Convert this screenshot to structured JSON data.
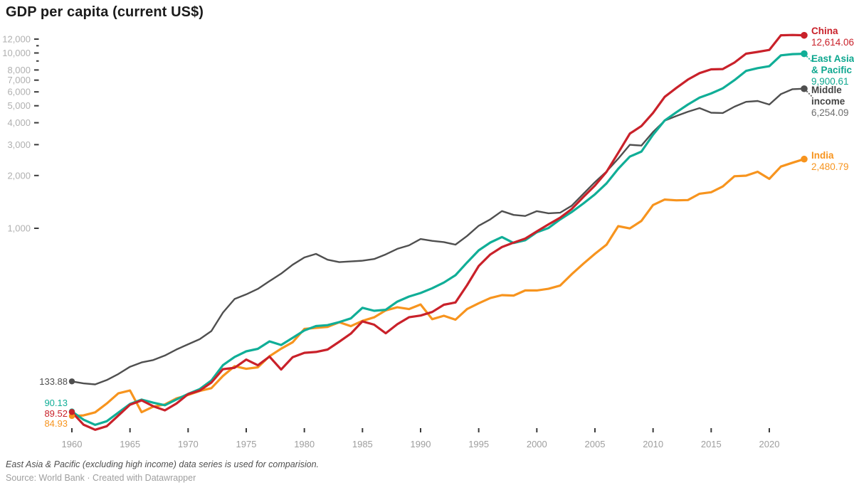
{
  "page": {
    "title": "GDP per capita (current US$)"
  },
  "chart_data": {
    "type": "line",
    "title": "GDP per capita (current US$)",
    "y_scale": "log",
    "grid": "ticks-only",
    "legend_position": "right-edge-labels",
    "x_start_year": 1960,
    "x_end_year": 2023,
    "ylim": [
      65,
      13000
    ],
    "x_ticks": [
      {
        "year": 1960,
        "label": "1960"
      },
      {
        "year": 1965,
        "label": "1965"
      },
      {
        "year": 1970,
        "label": "1970"
      },
      {
        "year": 1975,
        "label": "1975"
      },
      {
        "year": 1980,
        "label": "1980"
      },
      {
        "year": 1985,
        "label": "1985"
      },
      {
        "year": 1990,
        "label": "1990"
      },
      {
        "year": 1995,
        "label": "1995"
      },
      {
        "year": 2000,
        "label": "2000"
      },
      {
        "year": 2005,
        "label": "2005"
      },
      {
        "year": 2010,
        "label": "2010"
      },
      {
        "year": 2015,
        "label": "2015"
      },
      {
        "year": 2020,
        "label": "2020"
      }
    ],
    "y_ticks": [
      {
        "value": 1000,
        "label": "1,000"
      },
      {
        "value": 2000,
        "label": "2,000"
      },
      {
        "value": 3000,
        "label": "3,000"
      },
      {
        "value": 4000,
        "label": "4,000"
      },
      {
        "value": 5000,
        "label": "5,000"
      },
      {
        "value": 6000,
        "label": "6,000"
      },
      {
        "value": 7000,
        "label": "7,000"
      },
      {
        "value": 8000,
        "label": "8,000"
      },
      {
        "value": 10000,
        "label": "10,000"
      },
      {
        "value": 12000,
        "label": "12,000"
      }
    ],
    "y_minor_ticks": [
      9000,
      11000
    ],
    "series": [
      {
        "id": "middle-income",
        "name": "Middle income",
        "name_lines": [
          "Middle",
          "income"
        ],
        "color": "#4f4f4f",
        "name_color": "#454545",
        "value_color": "#6e6e6e",
        "start_value": 133.88,
        "start_label": "133.88",
        "end_value": 6254.09,
        "end_label": "6,254.09",
        "values": [
          133.88,
          130.4,
          128.7,
          136.2,
          147.5,
          162.3,
          171.8,
          177.2,
          188.0,
          203.6,
          217.9,
          233.2,
          259.4,
          330.6,
          395.2,
          419.8,
          451.3,
          499.6,
          551.2,
          619.7,
          681.9,
          714.3,
          661.8,
          641.2,
          646.9,
          653.4,
          668.2,
          709.8,
          763.5,
          799.3,
          868.7,
          847.6,
          834.2,
          806.5,
          903.8,
          1034.6,
          1124.8,
          1253.7,
          1192.4,
          1174.9,
          1252.8,
          1217.6,
          1227.4,
          1344.9,
          1571.2,
          1833.5,
          2109.7,
          2494.6,
          2993.1,
          2964.8,
          3543.7,
          4109.3,
          4368.9,
          4621.5,
          4847.9,
          4562.3,
          4544.8,
          4939.7,
          5261.4,
          5320.7,
          5079.5,
          5828.9,
          6217.6,
          6254.09
        ]
      },
      {
        "id": "india",
        "name": "India",
        "name_lines": [
          "India"
        ],
        "color": "#f7941e",
        "name_color": "#f7941e",
        "value_color": "#f7941e",
        "start_value": 84.93,
        "start_label": "84.93",
        "end_value": 2480.79,
        "end_label": "2,480.79",
        "values": [
          84.93,
          85.62,
          89.11,
          100.07,
          114.36,
          118.7,
          89.34,
          96.04,
          98.87,
          107.06,
          111.97,
          118.12,
          122.46,
          143.78,
          163.44,
          157.93,
          161.09,
          186.21,
          205.69,
          223.97,
          266.58,
          270.47,
          274.11,
          291.24,
          276.67,
          296.44,
          310.46,
          340.42,
          354.15,
          346.11,
          367.56,
          303.06,
          316.95,
          301.16,
          346.1,
          373.77,
          399.95,
          415.49,
          413.3,
          441.99,
          442.03,
          451.57,
          470.99,
          546.73,
          627.77,
          714.86,
          806.75,
          1028.33,
          998.52,
          1101.96,
          1357.56,
          1458.1,
          1443.88,
          1449.61,
          1573.88,
          1605.61,
          1732.55,
          1980.67,
          1996.92,
          2100.75,
          1913.22,
          2250.18,
          2366.26,
          2480.79
        ]
      },
      {
        "id": "east-asia-pacific",
        "name": "East Asia & Pacific",
        "name_lines": [
          "East Asia",
          "& Pacific"
        ],
        "color": "#10ae97",
        "name_color": "#0ea78f",
        "value_color": "#0ea78f",
        "start_value": 90.13,
        "start_label": "90.13",
        "end_value": 9900.61,
        "end_label": "9,900.61",
        "values": [
          90.13,
          81.0,
          75.6,
          79.3,
          88.8,
          99.5,
          105.4,
          101.2,
          97.9,
          105.6,
          113.5,
          121.0,
          135.4,
          165.8,
          184.6,
          198.7,
          205.3,
          226.4,
          216.0,
          237.2,
          261.5,
          276.8,
          280.2,
          291.6,
          306.3,
          351.9,
          338.4,
          342.7,
          381.6,
          407.8,
          427.3,
          455.1,
          490.4,
          539.7,
          638.2,
          748.6,
          829.4,
          891.7,
          824.3,
          854.6,
          948.9,
          1004.2,
          1122.6,
          1237.8,
          1385.4,
          1562.7,
          1804.9,
          2182.6,
          2563.8,
          2739.5,
          3417.2,
          4121.8,
          4588.3,
          5081.9,
          5562.4,
          5879.8,
          6288.7,
          6998.2,
          7899.4,
          8198.6,
          8402.3,
          9698.5,
          9853.9,
          9900.61
        ]
      },
      {
        "id": "china",
        "name": "China",
        "name_lines": [
          "China"
        ],
        "color": "#c9212a",
        "name_color": "#c9212a",
        "value_color": "#c9212a",
        "start_value": 89.52,
        "start_label": "89.52",
        "end_value": 12614.06,
        "end_label": "12,614.06",
        "values": [
          89.52,
          75.81,
          70.91,
          74.31,
          85.5,
          98.49,
          104.32,
          96.59,
          91.47,
          100.13,
          113.16,
          118.65,
          131.88,
          157.09,
          160.14,
          178.34,
          165.41,
          185.42,
          156.4,
          183.98,
          194.8,
          197.07,
          203.33,
          225.43,
          250.71,
          294.46,
          281.93,
          251.81,
          283.54,
          310.88,
          317.88,
          333.14,
          366.46,
          377.39,
          473.49,
          609.66,
          709.41,
          781.74,
          828.58,
          873.29,
          959.37,
          1053.11,
          1148.51,
          1288.64,
          1508.67,
          1753.42,
          2099.23,
          2693.97,
          3468.3,
          3832.24,
          4550.45,
          5618.13,
          6316.92,
          7050.65,
          7678.6,
          8066.94,
          8094.36,
          8816.99,
          9905.34,
          10143.84,
          10408.67,
          12617.51,
          12662.58,
          12614.06
        ]
      }
    ],
    "footnote": "East Asia & Pacific (excluding high income) data series is used for comparision.",
    "source": "Source: World Bank · Created with Datawrapper"
  }
}
